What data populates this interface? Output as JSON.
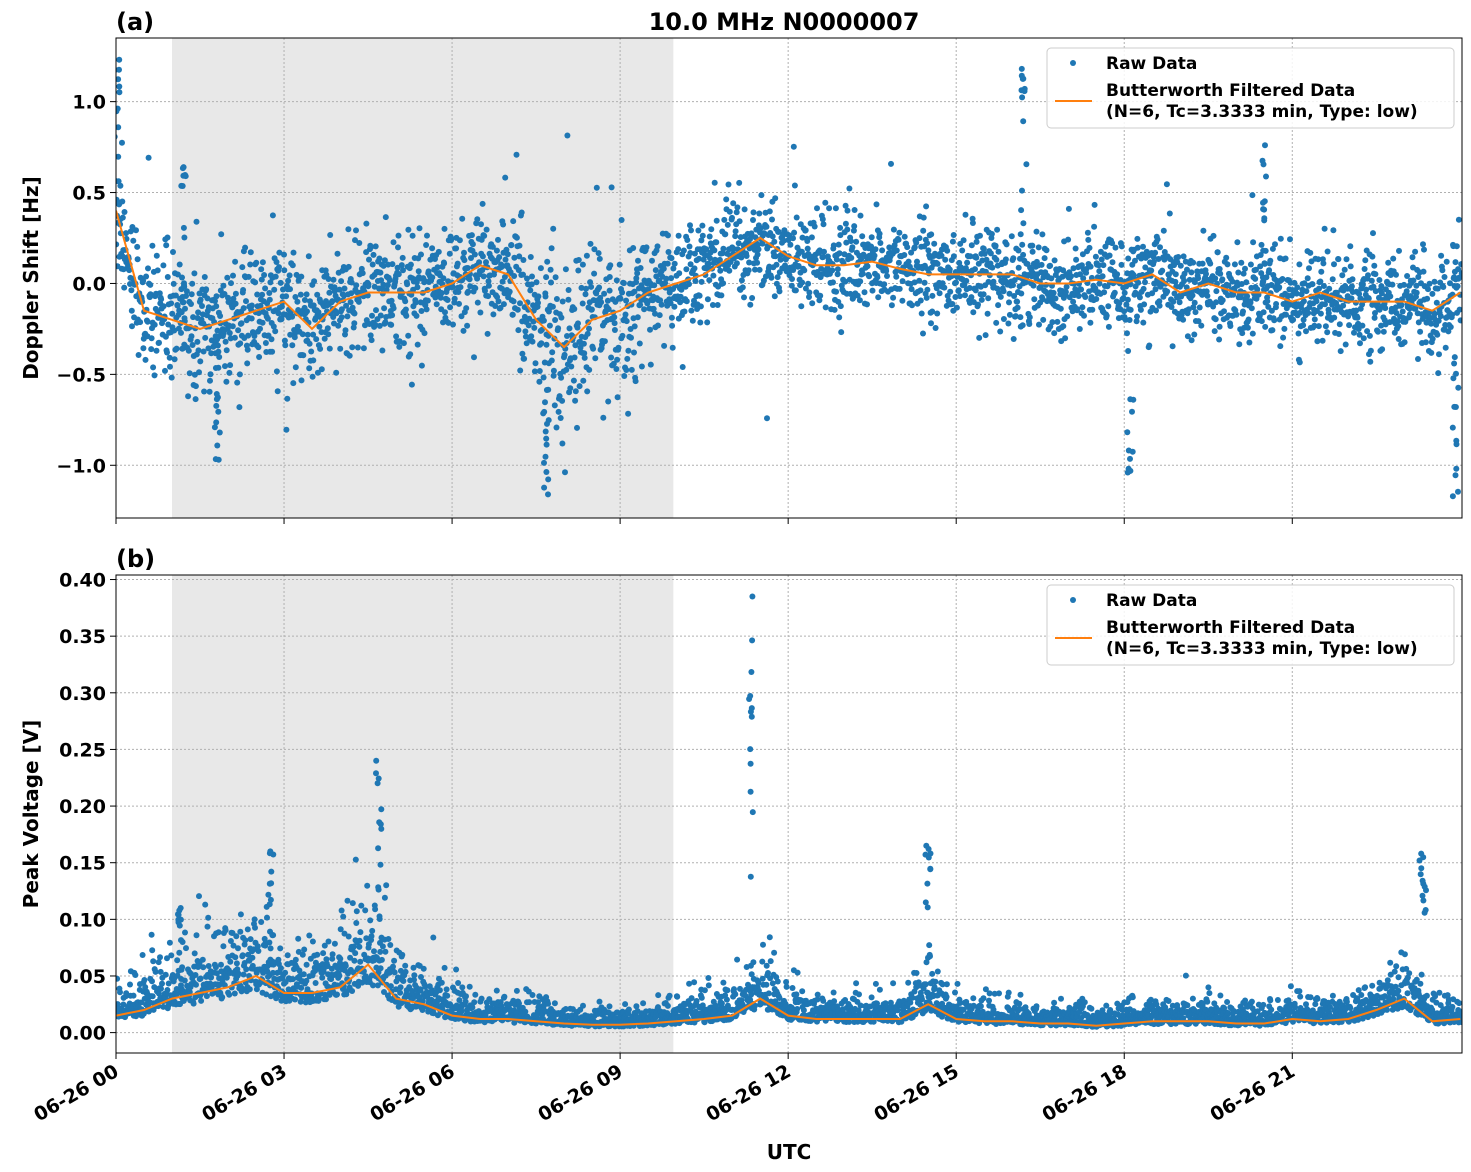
{
  "title": "10.0 MHz N0000007",
  "xlabel": "UTC",
  "x_tick_labels": [
    "06-26 00",
    "06-26 03",
    "06-26 06",
    "06-26 09",
    "06-26 12",
    "06-26 15",
    "06-26 18",
    "06-26 21"
  ],
  "colors": {
    "raw": "#1f77b4",
    "filtered": "#ff7f0e",
    "shade": "#e8e8e8",
    "grid": "#b0b0b0"
  },
  "legend": {
    "raw_label": "Raw Data",
    "filtered_label_1": "Butterworth Filtered Data",
    "filtered_label_2": "(N=6, Tc=3.3333 min, Type: low)",
    "placement": "top-right"
  },
  "chart_data": [
    {
      "type": "scatter",
      "panel_label": "(a)",
      "ylabel": "Doppler Shift [Hz]",
      "x_unit": "hours UTC on 06-26",
      "xlim": [
        0,
        24.03
      ],
      "ylim": [
        -1.29,
        1.35
      ],
      "y_ticks": [
        -1.0,
        -0.5,
        0.0,
        0.5,
        1.0
      ],
      "y_tick_labels": [
        "−1.0",
        "−0.5",
        "0.0",
        "0.5",
        "1.0"
      ],
      "grid": true,
      "shaded_interval_hours": [
        1.0,
        9.95
      ],
      "filtered_x": [
        0,
        0.5,
        1,
        1.5,
        2,
        2.5,
        3,
        3.5,
        4,
        4.5,
        5,
        5.5,
        6,
        6.5,
        7,
        7.5,
        8,
        8.5,
        9,
        9.5,
        10,
        10.5,
        11,
        11.5,
        12,
        12.5,
        13,
        13.5,
        14,
        14.5,
        15,
        15.5,
        16,
        16.5,
        17,
        17.5,
        18,
        18.5,
        19,
        19.5,
        20,
        20.5,
        21,
        21.5,
        22,
        22.5,
        23,
        23.5,
        24
      ],
      "filtered_y": [
        0.4,
        -0.15,
        -0.2,
        -0.25,
        -0.2,
        -0.15,
        -0.1,
        -0.25,
        -0.1,
        -0.05,
        -0.05,
        -0.05,
        0.0,
        0.1,
        0.05,
        -0.2,
        -0.35,
        -0.2,
        -0.15,
        -0.05,
        0.0,
        0.05,
        0.15,
        0.25,
        0.15,
        0.1,
        0.1,
        0.12,
        0.08,
        0.05,
        0.05,
        0.05,
        0.05,
        0.0,
        0.0,
        0.02,
        0.0,
        0.05,
        -0.05,
        0.0,
        -0.05,
        -0.05,
        -0.1,
        -0.05,
        -0.1,
        -0.1,
        -0.1,
        -0.15,
        -0.05
      ],
      "raw_spread": [
        0.35,
        0.3,
        0.35,
        0.3,
        0.3,
        0.3,
        0.35,
        0.3,
        0.3,
        0.3,
        0.3,
        0.3,
        0.3,
        0.3,
        0.3,
        0.45,
        0.5,
        0.45,
        0.4,
        0.3,
        0.3,
        0.3,
        0.3,
        0.3,
        0.25,
        0.25,
        0.25,
        0.25,
        0.25,
        0.25,
        0.25,
        0.25,
        0.25,
        0.25,
        0.25,
        0.25,
        0.25,
        0.25,
        0.25,
        0.25,
        0.25,
        0.25,
        0.25,
        0.25,
        0.25,
        0.25,
        0.25,
        0.25,
        0.25
      ],
      "spikes": [
        {
          "x": 0.05,
          "y": 1.23
        },
        {
          "x": 1.2,
          "y": 0.64
        },
        {
          "x": 16.2,
          "y": 1.18
        },
        {
          "x": 20.5,
          "y": 0.76
        },
        {
          "x": 7.7,
          "y": -1.16
        },
        {
          "x": 23.9,
          "y": -1.17
        },
        {
          "x": 18.1,
          "y": -1.04
        },
        {
          "x": 1.8,
          "y": -0.97
        }
      ]
    },
    {
      "type": "scatter",
      "panel_label": "(b)",
      "ylabel": "Peak Voltage [V]",
      "x_unit": "hours UTC on 06-26",
      "xlim": [
        0,
        24.03
      ],
      "ylim": [
        -0.018,
        0.404
      ],
      "y_ticks": [
        0.0,
        0.05,
        0.1,
        0.15,
        0.2,
        0.25,
        0.3,
        0.35,
        0.4
      ],
      "y_tick_labels": [
        "0.00",
        "0.05",
        "0.10",
        "0.15",
        "0.20",
        "0.25",
        "0.30",
        "0.35",
        "0.40"
      ],
      "grid": true,
      "shaded_interval_hours": [
        1.0,
        9.95
      ],
      "filtered_x": [
        0,
        0.5,
        1,
        1.5,
        2,
        2.5,
        3,
        3.5,
        4,
        4.5,
        5,
        5.5,
        6,
        6.5,
        7,
        7.5,
        8,
        8.5,
        9,
        9.5,
        10,
        10.5,
        11,
        11.5,
        12,
        12.5,
        13,
        13.5,
        14,
        14.5,
        15,
        15.5,
        16,
        16.5,
        17,
        17.5,
        18,
        18.5,
        19,
        19.5,
        20,
        20.5,
        21,
        21.5,
        22,
        22.5,
        23,
        23.5,
        24
      ],
      "filtered_y": [
        0.015,
        0.02,
        0.03,
        0.035,
        0.04,
        0.05,
        0.035,
        0.035,
        0.04,
        0.06,
        0.03,
        0.025,
        0.015,
        0.012,
        0.012,
        0.01,
        0.008,
        0.007,
        0.007,
        0.008,
        0.01,
        0.012,
        0.015,
        0.03,
        0.015,
        0.012,
        0.012,
        0.012,
        0.012,
        0.025,
        0.012,
        0.01,
        0.01,
        0.008,
        0.008,
        0.006,
        0.008,
        0.01,
        0.01,
        0.01,
        0.008,
        0.008,
        0.012,
        0.01,
        0.012,
        0.02,
        0.03,
        0.01,
        0.012
      ],
      "spikes": [
        {
          "x": 11.35,
          "y": 0.385
        },
        {
          "x": 4.7,
          "y": 0.24
        },
        {
          "x": 14.5,
          "y": 0.165
        },
        {
          "x": 23.35,
          "y": 0.158
        },
        {
          "x": 2.75,
          "y": 0.16
        },
        {
          "x": 1.15,
          "y": 0.11
        }
      ]
    }
  ]
}
